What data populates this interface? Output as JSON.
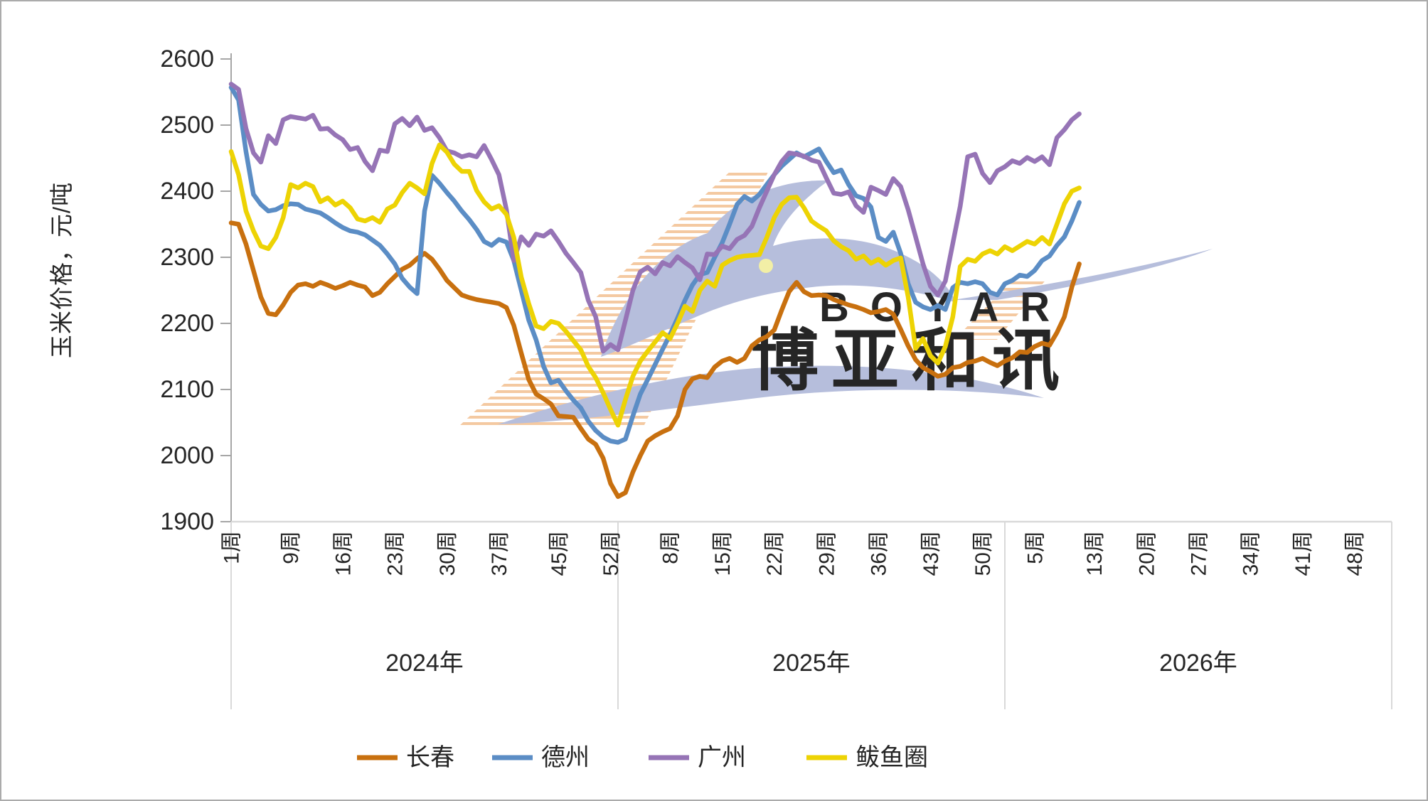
{
  "chart_data": {
    "type": "line",
    "title": "",
    "y_axis": {
      "title": "玉米价格，元/吨",
      "min": 1900,
      "max": 2600,
      "step": 100,
      "tick_labels": [
        "2600",
        "2500",
        "2400",
        "2300",
        "2200",
        "2100",
        "2000",
        "1900"
      ]
    },
    "x_axis": {
      "weeks_per_year": 52,
      "groups": [
        {
          "label": "2024年",
          "tick_weeks": [
            1,
            9,
            16,
            23,
            30,
            37,
            45,
            52
          ],
          "tick_labels": [
            "1周",
            "9周",
            "16周",
            "23周",
            "30周",
            "37周",
            "45周",
            "52周"
          ]
        },
        {
          "label": "2025年",
          "tick_weeks": [
            8,
            15,
            22,
            29,
            36,
            43,
            50
          ],
          "tick_labels": [
            "8周",
            "15周",
            "22周",
            "29周",
            "36周",
            "43周",
            "50周"
          ]
        },
        {
          "label": "2026年",
          "tick_weeks": [
            5,
            13,
            20,
            27,
            34,
            41,
            48
          ],
          "tick_labels": [
            "5周",
            "13周",
            "20周",
            "27周",
            "34周",
            "41周",
            "48周"
          ]
        }
      ]
    },
    "grid": false,
    "legend_position": "bottom",
    "series": [
      {
        "name": "长春",
        "color": "#C8700F",
        "values_2024": [
          2352,
          2350,
          2320,
          2280,
          2240,
          2215,
          2213,
          2228,
          2247,
          2258,
          2260,
          2256,
          2262,
          2258,
          2253,
          2257,
          2262,
          2258,
          2255,
          2242,
          2247,
          2260,
          2271,
          2282,
          2288,
          2298,
          2306,
          2297,
          2282,
          2265,
          2254,
          2243,
          2239,
          2236,
          2234,
          2232,
          2230,
          2224,
          2197,
          2155,
          2115,
          2093,
          2086,
          2078,
          2060,
          2059,
          2058,
          2041,
          2025,
          2017,
          1996,
          1958
        ],
        "values_2025": [
          1938,
          1944,
          1975,
          2000,
          2022,
          2030,
          2036,
          2041,
          2060,
          2100,
          2116,
          2120,
          2118,
          2134,
          2143,
          2147,
          2141,
          2147,
          2166,
          2175,
          2180,
          2190,
          2220,
          2248,
          2262,
          2248,
          2242,
          2243,
          2242,
          2236,
          2232,
          2228,
          2225,
          2221,
          2216,
          2218,
          2221,
          2214,
          2191,
          2166,
          2145,
          2133,
          2127,
          2120,
          2123,
          2133,
          2135,
          2141,
          2143,
          2147,
          2141,
          2136
        ],
        "values_2026": [
          2143,
          2148,
          2157,
          2156,
          2165,
          2170,
          2167,
          2186,
          2210,
          2255,
          2290
        ]
      },
      {
        "name": "德州",
        "color": "#5B8DC5",
        "values_2024": [
          2557,
          2538,
          2460,
          2395,
          2380,
          2370,
          2372,
          2378,
          2381,
          2380,
          2373,
          2370,
          2367,
          2360,
          2352,
          2345,
          2340,
          2338,
          2334,
          2326,
          2318,
          2305,
          2290,
          2268,
          2255,
          2245,
          2370,
          2424,
          2412,
          2398,
          2385,
          2370,
          2357,
          2342,
          2324,
          2318,
          2327,
          2323,
          2295,
          2250,
          2205,
          2175,
          2135,
          2110,
          2114,
          2098,
          2084,
          2072,
          2052,
          2038,
          2028,
          2022
        ],
        "values_2025": [
          2020,
          2025,
          2060,
          2093,
          2115,
          2138,
          2161,
          2183,
          2208,
          2235,
          2258,
          2274,
          2277,
          2300,
          2322,
          2350,
          2380,
          2392,
          2385,
          2395,
          2410,
          2425,
          2438,
          2448,
          2458,
          2452,
          2458,
          2464,
          2445,
          2428,
          2432,
          2410,
          2393,
          2389,
          2376,
          2330,
          2324,
          2338,
          2306,
          2260,
          2232,
          2225,
          2221,
          2227,
          2221,
          2254,
          2262,
          2260,
          2263,
          2260,
          2247,
          2243
        ],
        "values_2026": [
          2260,
          2265,
          2273,
          2271,
          2280,
          2295,
          2302,
          2318,
          2331,
          2355,
          2383
        ]
      },
      {
        "name": "广州",
        "color": "#9674B6",
        "values_2024": [
          2562,
          2554,
          2495,
          2458,
          2444,
          2484,
          2472,
          2508,
          2513,
          2511,
          2509,
          2515,
          2494,
          2495,
          2485,
          2478,
          2463,
          2466,
          2445,
          2431,
          2462,
          2460,
          2502,
          2510,
          2499,
          2512,
          2492,
          2496,
          2481,
          2461,
          2458,
          2452,
          2455,
          2452,
          2469,
          2448,
          2425,
          2372,
          2295,
          2331,
          2318,
          2335,
          2332,
          2340,
          2324,
          2306,
          2292,
          2277,
          2235,
          2210,
          2158,
          2168
        ],
        "values_2025": [
          2160,
          2205,
          2250,
          2278,
          2285,
          2275,
          2292,
          2287,
          2301,
          2292,
          2284,
          2266,
          2305,
          2304,
          2317,
          2313,
          2327,
          2333,
          2347,
          2375,
          2400,
          2425,
          2445,
          2458,
          2456,
          2453,
          2447,
          2444,
          2420,
          2397,
          2395,
          2399,
          2378,
          2368,
          2406,
          2401,
          2395,
          2419,
          2407,
          2372,
          2331,
          2290,
          2256,
          2243,
          2264,
          2321,
          2377,
          2452,
          2456,
          2427,
          2413,
          2431
        ],
        "values_2026": [
          2437,
          2446,
          2442,
          2451,
          2445,
          2452,
          2440,
          2481,
          2493,
          2508,
          2517
        ]
      },
      {
        "name": "鲅鱼圈",
        "color": "#EDD304",
        "values_2024": [
          2460,
          2425,
          2370,
          2340,
          2317,
          2313,
          2330,
          2360,
          2410,
          2405,
          2412,
          2407,
          2384,
          2390,
          2379,
          2385,
          2375,
          2358,
          2355,
          2360,
          2353,
          2373,
          2379,
          2398,
          2412,
          2405,
          2396,
          2442,
          2470,
          2459,
          2441,
          2430,
          2430,
          2401,
          2384,
          2373,
          2378,
          2365,
          2330,
          2270,
          2230,
          2196,
          2192,
          2203,
          2200,
          2188,
          2174,
          2160,
          2135,
          2118,
          2095,
          2070
        ],
        "values_2025": [
          2046,
          2085,
          2120,
          2143,
          2158,
          2172,
          2186,
          2177,
          2200,
          2226,
          2218,
          2250,
          2264,
          2256,
          2288,
          2295,
          2300,
          2302,
          2303,
          2304,
          2330,
          2360,
          2380,
          2390,
          2391,
          2375,
          2355,
          2347,
          2340,
          2325,
          2316,
          2310,
          2297,
          2302,
          2291,
          2297,
          2288,
          2295,
          2299,
          2240,
          2162,
          2177,
          2151,
          2140,
          2165,
          2210,
          2286,
          2297,
          2294,
          2305,
          2310,
          2305
        ],
        "values_2026": [
          2316,
          2310,
          2317,
          2324,
          2320,
          2330,
          2320,
          2350,
          2381,
          2400,
          2405
        ]
      }
    ]
  },
  "watermark": {
    "brand_en": "BOYAR",
    "brand_cn": "博亚和讯",
    "bird_color": "#B6BEDC",
    "eye_color": "#F2EFA6",
    "stripe_color": "#F4C9A1",
    "text_color_en": "#F4C9A0",
    "text_color_cn": "#B9C1DF"
  },
  "style": {
    "axis_color": "#A6A6A6",
    "baseline_color": "#D9D9D9",
    "separator_color": "#D9D9D9",
    "label_color": "#262626",
    "background": "#FFFFFF",
    "line_width": 6.5
  }
}
